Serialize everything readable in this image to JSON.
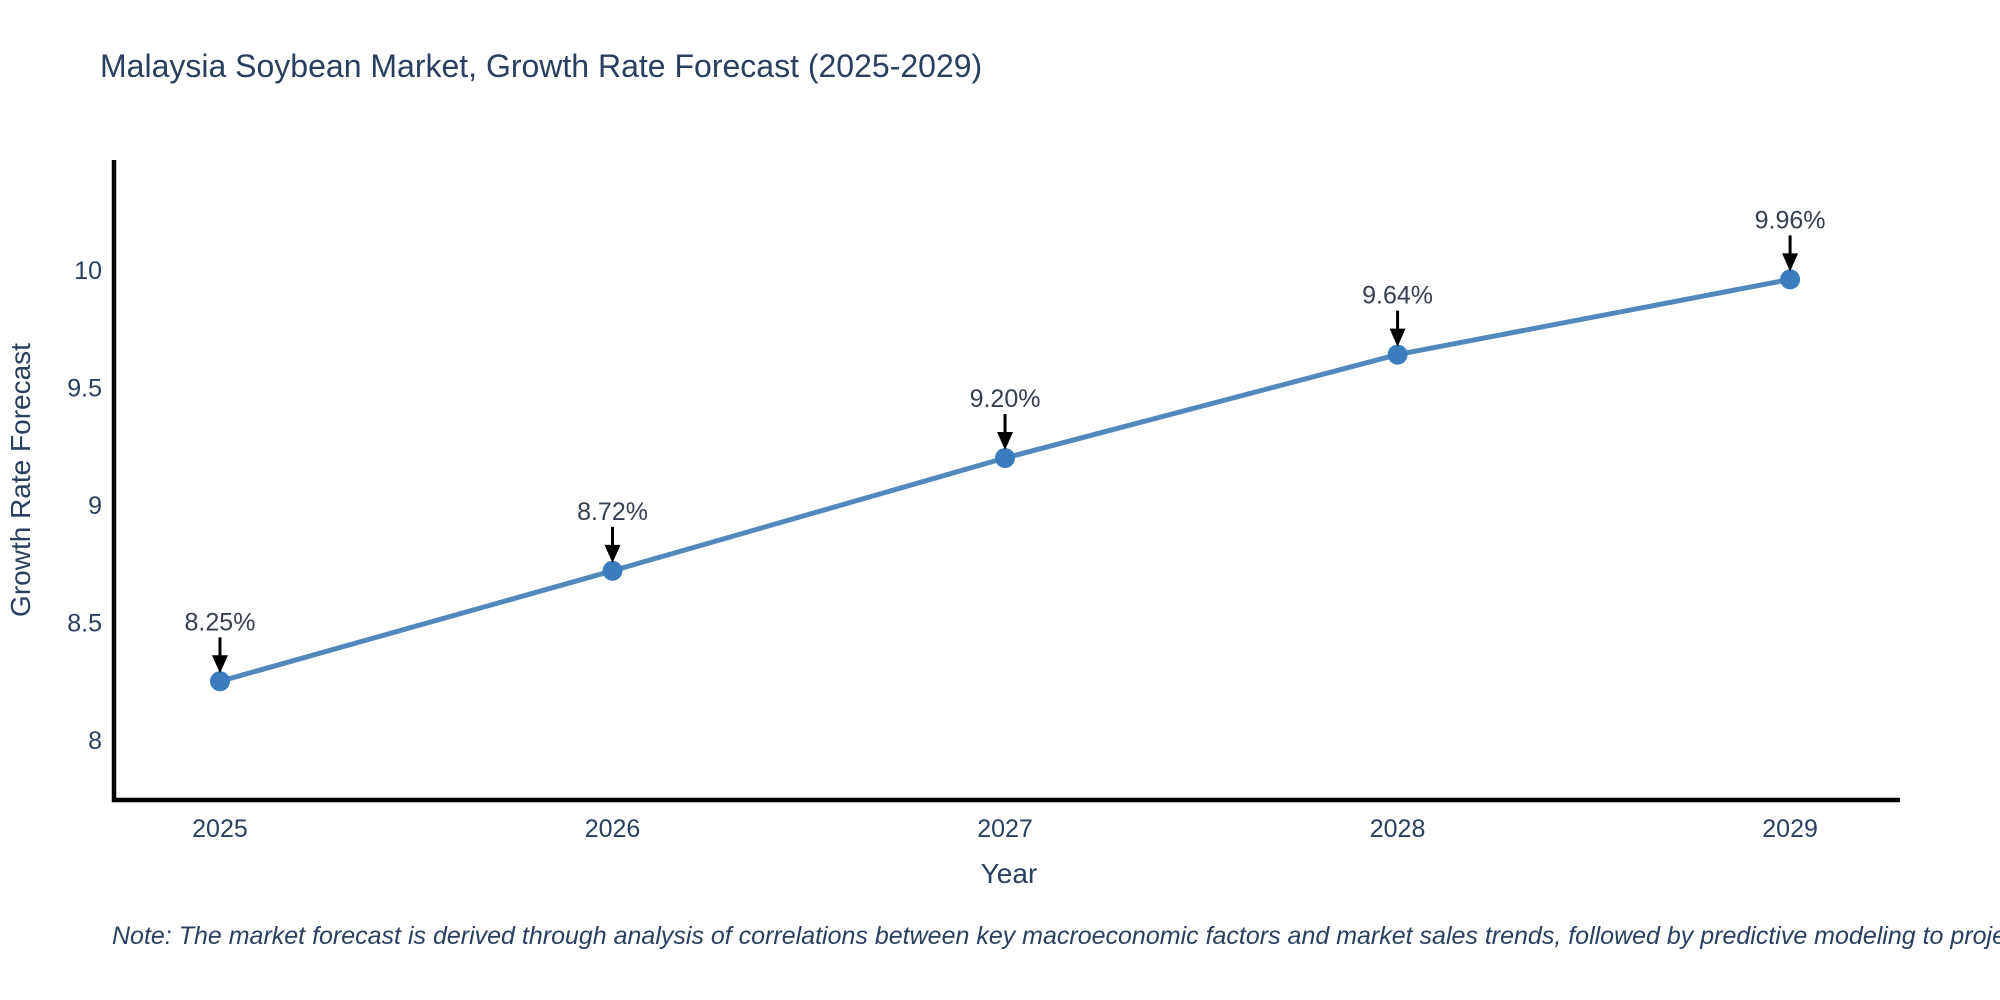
{
  "page": {
    "background": "#ffffff"
  },
  "title": "Malaysia Soybean Market, Growth Rate Forecast (2025-2029)",
  "note": "Note: The market forecast is derived through analysis of correlations between key macroeconomic factors and market sales trends, followed by predictive modeling to project future sales",
  "chart_data": {
    "type": "line",
    "title": "Malaysia Soybean Market, Growth Rate Forecast (2025-2029)",
    "xlabel": "Year",
    "ylabel": "Growth Rate Forecast",
    "categories": [
      "2025",
      "2026",
      "2027",
      "2028",
      "2029"
    ],
    "x": [
      2025,
      2026,
      2027,
      2028,
      2029
    ],
    "values": [
      8.25,
      8.72,
      9.2,
      9.64,
      9.96
    ],
    "point_labels": [
      "8.25%",
      "8.72%",
      "9.20%",
      "9.64%",
      "9.96%"
    ],
    "yticks": [
      8,
      8.5,
      9,
      9.5,
      10
    ],
    "ytick_labels": [
      "8",
      "8.5",
      "9",
      "9.5",
      "10"
    ],
    "ylim": [
      7.745,
      10.468
    ],
    "xlim": [
      2024.73,
      2029.28
    ],
    "grid": false,
    "legend": "none",
    "annotation_style": "arrow-down-to-point",
    "colors": {
      "line": "#5289bd",
      "marker": "#3a7cbe",
      "axis": "#000000",
      "text": "#2a3f5f",
      "annotation_text": "#343f4f",
      "arrow": "#000000"
    }
  }
}
